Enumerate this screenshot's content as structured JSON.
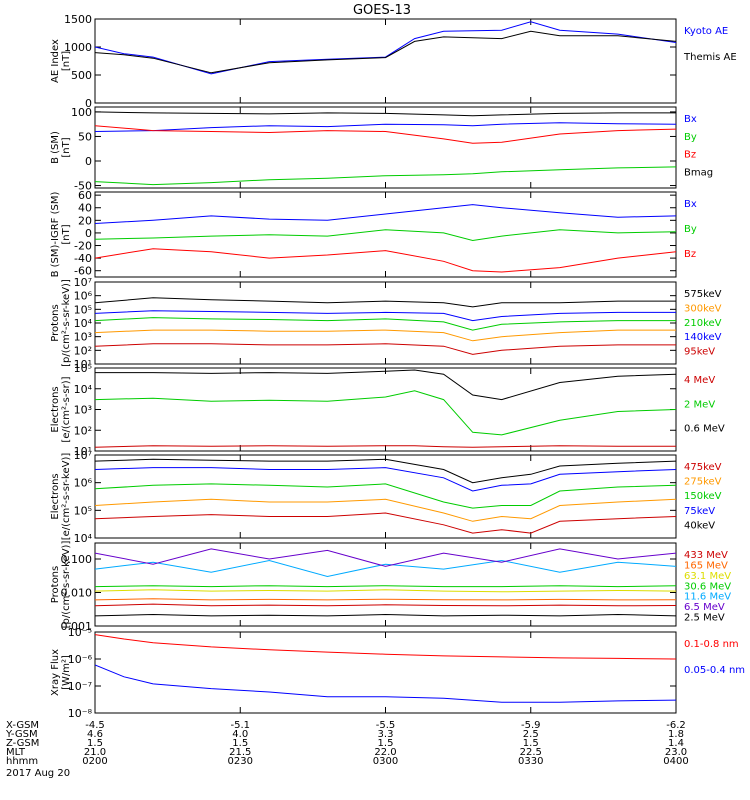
{
  "title": "GOES-13",
  "date_label": "2017 Aug 20",
  "footer": {
    "labels": [
      "X-GSM",
      "Y-GSM",
      "Z-GSM",
      "MLT",
      "hhmm"
    ],
    "columns": [
      {
        "x_gsm": "-4.5",
        "y_gsm": "4.6",
        "z_gsm": "1.5",
        "mlt": "21.0",
        "hhmm": "0200"
      },
      {
        "x_gsm": "-5.1",
        "y_gsm": "4.0",
        "z_gsm": "1.5",
        "mlt": "21.5",
        "hhmm": "0230"
      },
      {
        "x_gsm": "-5.5",
        "y_gsm": "3.3",
        "z_gsm": "1.5",
        "mlt": "22.0",
        "hhmm": "0300"
      },
      {
        "x_gsm": "-5.9",
        "y_gsm": "2.5",
        "z_gsm": "1.5",
        "mlt": "22.5",
        "hhmm": "0330"
      },
      {
        "x_gsm": "-6.2",
        "y_gsm": "1.8",
        "z_gsm": "1.4",
        "mlt": "23.0",
        "hhmm": "0400"
      }
    ]
  },
  "chart_data": [
    {
      "type": "line",
      "ylabel": [
        "AE Index",
        "[nT]"
      ],
      "ylim": [
        0,
        1500
      ],
      "yscale": "linear",
      "yticks": [
        {
          "v": 0,
          "label": "0"
        },
        {
          "v": 500,
          "label": "500"
        },
        {
          "v": 1000,
          "label": "1000"
        },
        {
          "v": 1500,
          "label": "1500"
        }
      ],
      "x": [
        0,
        0.05,
        0.1,
        0.2,
        0.3,
        0.4,
        0.5,
        0.55,
        0.6,
        0.7,
        0.75,
        0.8,
        0.9,
        1.0
      ],
      "series": [
        {
          "name": "Kyoto AE",
          "color": "#0000ff",
          "values": [
            1000,
            880,
            820,
            520,
            740,
            780,
            820,
            1150,
            1280,
            1300,
            1450,
            1300,
            1230,
            1080
          ]
        },
        {
          "name": "Themis AE",
          "color": "#000000",
          "values": [
            900,
            860,
            800,
            540,
            720,
            770,
            810,
            1100,
            1180,
            1150,
            1280,
            1200,
            1200,
            1100
          ]
        }
      ]
    },
    {
      "type": "line",
      "ylabel": [
        "B (SM)",
        "[nT]"
      ],
      "ylim": [
        -55,
        110
      ],
      "yscale": "linear",
      "yticks": [
        {
          "v": -50,
          "label": "-50"
        },
        {
          "v": 0,
          "label": "0"
        },
        {
          "v": 50,
          "label": "50"
        },
        {
          "v": 100,
          "label": "100"
        }
      ],
      "x": [
        0,
        0.1,
        0.2,
        0.3,
        0.4,
        0.5,
        0.6,
        0.65,
        0.7,
        0.8,
        0.9,
        1.0
      ],
      "series": [
        {
          "name": "Bx",
          "color": "#0000ff",
          "values": [
            60,
            62,
            68,
            72,
            70,
            75,
            74,
            72,
            75,
            78,
            76,
            75
          ]
        },
        {
          "name": "By",
          "color": "#00cc00",
          "values": [
            -42,
            -48,
            -44,
            -38,
            -35,
            -30,
            -28,
            -26,
            -22,
            -18,
            -14,
            -12
          ]
        },
        {
          "name": "Bz",
          "color": "#ff0000",
          "values": [
            72,
            62,
            60,
            58,
            62,
            60,
            45,
            36,
            38,
            55,
            62,
            65
          ]
        },
        {
          "name": "Bmag",
          "color": "#000000",
          "values": [
            100,
            98,
            97,
            96,
            98,
            97,
            94,
            92,
            94,
            97,
            98,
            98
          ]
        }
      ]
    },
    {
      "type": "line",
      "ylabel": [
        "B (SM)-IGRF (SM)",
        "[nT]"
      ],
      "ylim": [
        -70,
        65
      ],
      "yscale": "linear",
      "yticks": [
        {
          "v": -60,
          "label": "-60"
        },
        {
          "v": -40,
          "label": "-40"
        },
        {
          "v": -20,
          "label": "-20"
        },
        {
          "v": 0,
          "label": "0"
        },
        {
          "v": 20,
          "label": "20"
        },
        {
          "v": 40,
          "label": "40"
        },
        {
          "v": 60,
          "label": "60"
        }
      ],
      "x": [
        0,
        0.1,
        0.2,
        0.3,
        0.4,
        0.5,
        0.6,
        0.65,
        0.7,
        0.8,
        0.9,
        1.0
      ],
      "series": [
        {
          "name": "Bx",
          "color": "#0000ff",
          "values": [
            15,
            20,
            27,
            22,
            20,
            30,
            40,
            45,
            40,
            32,
            25,
            27
          ]
        },
        {
          "name": "By",
          "color": "#00cc00",
          "values": [
            -10,
            -8,
            -5,
            -3,
            -5,
            5,
            0,
            -12,
            -5,
            5,
            0,
            2
          ]
        },
        {
          "name": "Bz",
          "color": "#ff0000",
          "values": [
            -40,
            -25,
            -30,
            -40,
            -35,
            -28,
            -45,
            -60,
            -62,
            -55,
            -40,
            -30
          ]
        }
      ]
    },
    {
      "type": "line",
      "ylabel": [
        "Protons",
        "[p/(cm²-s-sr-keV)]"
      ],
      "ylim": [
        10,
        10000000
      ],
      "yscale": "log",
      "yticks": [
        {
          "v": 10,
          "label": "10¹"
        },
        {
          "v": 100,
          "label": "10²"
        },
        {
          "v": 1000,
          "label": "10³"
        },
        {
          "v": 10000,
          "label": "10⁴"
        },
        {
          "v": 100000,
          "label": "10⁵"
        },
        {
          "v": 1000000,
          "label": "10⁶"
        },
        {
          "v": 10000000,
          "label": "10⁷"
        }
      ],
      "x": [
        0,
        0.1,
        0.2,
        0.3,
        0.4,
        0.5,
        0.6,
        0.65,
        0.7,
        0.8,
        0.9,
        1.0
      ],
      "series": [
        {
          "name": "575keV",
          "color": "#000000",
          "values": [
            300000,
            700000,
            500000,
            400000,
            300000,
            400000,
            300000,
            150000,
            300000,
            300000,
            400000,
            400000
          ]
        },
        {
          "name": "300keV",
          "color": "#ff9900",
          "values": [
            2000,
            3000,
            3000,
            2500,
            2500,
            3000,
            2000,
            500,
            1000,
            2000,
            3000,
            3000
          ]
        },
        {
          "name": "210keV",
          "color": "#00cc00",
          "values": [
            15000,
            25000,
            20000,
            18000,
            15000,
            20000,
            12000,
            3000,
            8000,
            12000,
            15000,
            15000
          ]
        },
        {
          "name": "140keV",
          "color": "#0000ff",
          "values": [
            50000,
            80000,
            70000,
            60000,
            50000,
            60000,
            50000,
            15000,
            30000,
            50000,
            60000,
            60000
          ]
        },
        {
          "name": "95keV",
          "color": "#cc0000",
          "values": [
            200,
            300,
            300,
            250,
            250,
            300,
            200,
            50,
            100,
            200,
            250,
            250
          ]
        }
      ]
    },
    {
      "type": "line",
      "ylabel": [
        "Electrons",
        "[e/(cm²-s-sr)]"
      ],
      "ylim": [
        10,
        100000
      ],
      "yscale": "log",
      "yticks": [
        {
          "v": 10,
          "label": "10¹"
        },
        {
          "v": 100,
          "label": "10²"
        },
        {
          "v": 1000,
          "label": "10³"
        },
        {
          "v": 10000,
          "label": "10⁴"
        },
        {
          "v": 100000,
          "label": "10⁵"
        }
      ],
      "x": [
        0,
        0.1,
        0.2,
        0.3,
        0.4,
        0.5,
        0.55,
        0.6,
        0.65,
        0.7,
        0.8,
        0.9,
        1.0
      ],
      "series": [
        {
          "name": "4 MeV",
          "color": "#cc0000",
          "values": [
            15,
            18,
            17,
            18,
            17,
            18,
            18,
            16,
            15,
            16,
            18,
            17,
            17
          ]
        },
        {
          "name": "2 MeV",
          "color": "#00cc00",
          "values": [
            3000,
            3500,
            2500,
            2800,
            2500,
            4000,
            8000,
            3000,
            80,
            60,
            300,
            800,
            1000
          ]
        },
        {
          "name": "0.6 MeV",
          "color": "#000000",
          "values": [
            60000,
            60000,
            55000,
            60000,
            55000,
            70000,
            80000,
            50000,
            5000,
            3000,
            20000,
            40000,
            50000
          ]
        }
      ]
    },
    {
      "type": "line",
      "ylabel": [
        "Electrons",
        "[e/(cm²-s-sr-keV)]"
      ],
      "ylim": [
        10000,
        10000000
      ],
      "yscale": "log",
      "yticks": [
        {
          "v": 10000,
          "label": "10⁴"
        },
        {
          "v": 100000,
          "label": "10⁵"
        },
        {
          "v": 1000000,
          "label": "10⁶"
        },
        {
          "v": 10000000,
          "label": "10⁷"
        }
      ],
      "x": [
        0,
        0.1,
        0.2,
        0.3,
        0.4,
        0.5,
        0.6,
        0.65,
        0.7,
        0.75,
        0.8,
        0.9,
        1.0
      ],
      "series": [
        {
          "name": "475keV",
          "color": "#cc0000",
          "values": [
            50000,
            60000,
            70000,
            60000,
            60000,
            80000,
            30000,
            15000,
            20000,
            15000,
            40000,
            50000,
            60000
          ]
        },
        {
          "name": "275keV",
          "color": "#ff9900",
          "values": [
            150000,
            200000,
            250000,
            200000,
            200000,
            250000,
            80000,
            40000,
            60000,
            50000,
            150000,
            200000,
            250000
          ]
        },
        {
          "name": "150keV",
          "color": "#00cc00",
          "values": [
            600000,
            800000,
            900000,
            800000,
            700000,
            900000,
            200000,
            120000,
            150000,
            150000,
            500000,
            700000,
            800000
          ]
        },
        {
          "name": "75keV",
          "color": "#0000ff",
          "values": [
            3000000,
            3500000,
            3500000,
            3000000,
            3000000,
            3500000,
            1500000,
            500000,
            800000,
            900000,
            2000000,
            2500000,
            3000000
          ]
        },
        {
          "name": "40keV",
          "color": "#000000",
          "values": [
            6000000,
            7000000,
            6500000,
            6000000,
            6000000,
            7000000,
            3000000,
            1000000,
            1500000,
            2000000,
            4000000,
            5000000,
            6000000
          ]
        }
      ]
    },
    {
      "type": "line",
      "ylabel": [
        "Protons",
        "[p/(cm²-s-sr-keV)]"
      ],
      "ylim": [
        0.001,
        0.3
      ],
      "yscale": "log",
      "yticks": [
        {
          "v": 0.001,
          "label": "0.001"
        },
        {
          "v": 0.01,
          "label": "0.010"
        },
        {
          "v": 0.1,
          "label": "0.100"
        }
      ],
      "x": [
        0,
        0.1,
        0.2,
        0.3,
        0.4,
        0.5,
        0.6,
        0.7,
        0.8,
        0.9,
        1.0
      ],
      "series": [
        {
          "name": "433 MeV",
          "color": "#cc0000",
          "values": [
            0.004,
            0.0045,
            0.004,
            0.0042,
            0.004,
            0.0043,
            0.0041,
            0.004,
            0.0042,
            0.004,
            0.0041
          ]
        },
        {
          "name": "165 MeV",
          "color": "#ff6600",
          "values": [
            0.006,
            0.0065,
            0.006,
            0.0062,
            0.006,
            0.0063,
            0.0061,
            0.006,
            0.0062,
            0.006,
            0.0061
          ]
        },
        {
          "name": "63.1 MeV",
          "color": "#dddd00",
          "values": [
            0.011,
            0.012,
            0.011,
            0.0115,
            0.011,
            0.012,
            0.011,
            0.0105,
            0.011,
            0.0115,
            0.011
          ]
        },
        {
          "name": "30.6 MeV",
          "color": "#00cc00",
          "values": [
            0.015,
            0.016,
            0.015,
            0.016,
            0.015,
            0.016,
            0.015,
            0.015,
            0.016,
            0.015,
            0.016
          ]
        },
        {
          "name": "11.6 MeV",
          "color": "#00aaff",
          "values": [
            0.05,
            0.08,
            0.04,
            0.09,
            0.03,
            0.07,
            0.05,
            0.09,
            0.04,
            0.08,
            0.06
          ]
        },
        {
          "name": "6.5 MeV",
          "color": "#6600cc",
          "values": [
            0.15,
            0.07,
            0.2,
            0.1,
            0.18,
            0.06,
            0.15,
            0.08,
            0.2,
            0.1,
            0.15
          ]
        },
        {
          "name": "2.5 MeV",
          "color": "#000000",
          "values": [
            0.002,
            0.0022,
            0.002,
            0.0021,
            0.002,
            0.0022,
            0.002,
            0.0021,
            0.002,
            0.0022,
            0.002
          ]
        }
      ]
    },
    {
      "type": "line",
      "ylabel": [
        "Xray Flux",
        "[W/m²]"
      ],
      "ylim": [
        1e-08,
        1e-05
      ],
      "yscale": "log",
      "yticks": [
        {
          "v": 1e-08,
          "label": "10⁻⁸"
        },
        {
          "v": 1e-07,
          "label": "10⁻⁷"
        },
        {
          "v": 1e-06,
          "label": "10⁻⁶"
        },
        {
          "v": 1e-05,
          "label": "10⁻⁵"
        }
      ],
      "x": [
        0,
        0.05,
        0.1,
        0.2,
        0.3,
        0.4,
        0.5,
        0.6,
        0.7,
        0.8,
        0.9,
        1.0
      ],
      "series": [
        {
          "name": "0.1-0.8 nm",
          "color": "#ff0000",
          "values": [
            8e-06,
            5.5e-06,
            4e-06,
            2.8e-06,
            2.2e-06,
            1.8e-06,
            1.5e-06,
            1.3e-06,
            1.2e-06,
            1.1e-06,
            1.05e-06,
            1e-06
          ]
        },
        {
          "name": "0.05-0.4 nm",
          "color": "#0000ff",
          "values": [
            6e-07,
            2.2e-07,
            1.2e-07,
            8e-08,
            6e-08,
            4e-08,
            4e-08,
            3.5e-08,
            2.5e-08,
            2.5e-08,
            2.8e-08,
            3e-08
          ]
        }
      ]
    }
  ]
}
